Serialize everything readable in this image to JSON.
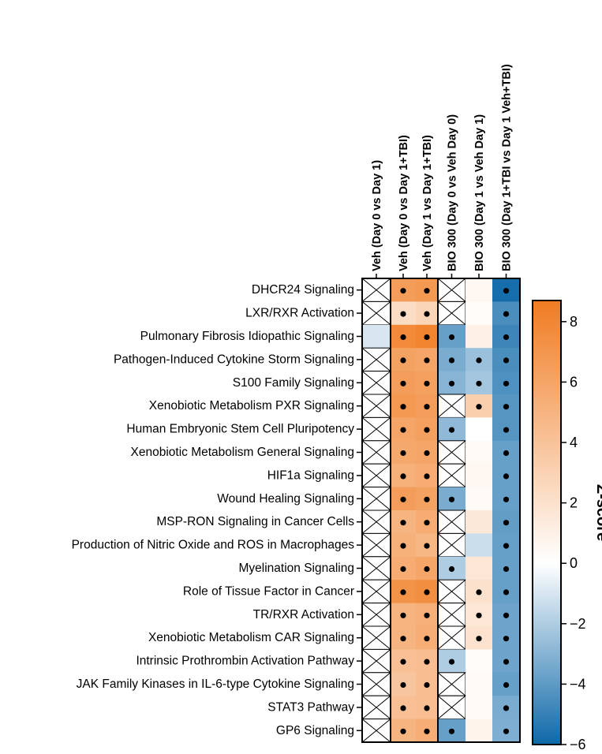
{
  "chart_data": {
    "type": "heatmap",
    "columns": [
      "Veh (Day 0 vs Day 1)",
      "Veh (Day 0 vs Day 1+TBI)",
      "Veh (Day 1 vs Day 1+TBI)",
      "BIO 300 (Day 0 vs Veh Day 0)",
      "BIO 300 (Day 1 vs Veh Day 1)",
      "BIO 300 (Day 1+TBI vs Day 1 Veh+TBI)"
    ],
    "rows": [
      "DHCR24 Signaling",
      "LXR/RXR Activation",
      "Pulmonary Fibrosis Idiopathic Signaling",
      "Pathogen-Induced Cytokine Storm Signaling",
      "S100 Family Signaling",
      "Xenobiotic Metabolism PXR Signaling",
      "Human Embryonic Stem Cell Pluripotency",
      "Xenobiotic Metabolism General Signaling",
      "HIF1a Signaling",
      "Wound Healing Signaling",
      "MSP-RON Signaling in Cancer Cells",
      "Production of Nitric Oxide and ROS in Macrophages",
      "Myelination Signaling",
      "Role of Tissue Factor in Cancer",
      "TR/RXR Activation",
      "Xenobiotic Metabolism CAR Signaling",
      "Intrinsic Prothrombin Activation Pathway",
      "JAK Family Kinases in IL-6-type Cytokine Signaling",
      "STAT3 Pathway",
      "GP6 Signaling"
    ],
    "values": [
      [
        null,
        6.5,
        6.8,
        null,
        0.5,
        -5.8
      ],
      [
        null,
        2.3,
        2.8,
        null,
        0.2,
        -4.5
      ],
      [
        -1.0,
        7.8,
        8.2,
        -3.8,
        1.0,
        -4.8
      ],
      [
        null,
        6.2,
        6.0,
        -3.3,
        -2.5,
        -4.5
      ],
      [
        null,
        6.5,
        6.3,
        -3.0,
        -2.3,
        -4.4
      ],
      [
        null,
        6.8,
        6.5,
        null,
        3.2,
        -4.2
      ],
      [
        null,
        6.0,
        6.3,
        -2.8,
        0.0,
        -4.2
      ],
      [
        null,
        5.8,
        6.0,
        null,
        0.4,
        -3.8
      ],
      [
        null,
        5.2,
        5.5,
        null,
        0.5,
        -3.8
      ],
      [
        null,
        6.5,
        6.2,
        -3.3,
        0.3,
        -3.8
      ],
      [
        null,
        5.0,
        5.5,
        null,
        1.5,
        -3.9
      ],
      [
        null,
        5.2,
        4.8,
        null,
        -1.3,
        -3.8
      ],
      [
        null,
        5.5,
        6.0,
        -2.0,
        1.6,
        -3.8
      ],
      [
        null,
        7.2,
        7.5,
        null,
        2.0,
        -3.8
      ],
      [
        null,
        5.0,
        5.3,
        null,
        1.6,
        -3.6
      ],
      [
        null,
        5.0,
        5.4,
        null,
        1.9,
        -3.6
      ],
      [
        null,
        4.2,
        4.3,
        -2.0,
        0.2,
        -3.6
      ],
      [
        null,
        3.8,
        4.3,
        null,
        0.3,
        -3.8
      ],
      [
        null,
        4.2,
        4.3,
        null,
        0.3,
        -3.3
      ],
      [
        null,
        5.0,
        5.4,
        -3.8,
        0.8,
        -3.2
      ]
    ],
    "significant": [
      [
        false,
        true,
        true,
        false,
        false,
        true
      ],
      [
        false,
        true,
        true,
        false,
        false,
        true
      ],
      [
        false,
        true,
        true,
        true,
        false,
        true
      ],
      [
        false,
        true,
        true,
        true,
        true,
        true
      ],
      [
        false,
        true,
        true,
        true,
        true,
        true
      ],
      [
        false,
        true,
        true,
        false,
        true,
        true
      ],
      [
        false,
        true,
        true,
        true,
        false,
        true
      ],
      [
        false,
        true,
        true,
        false,
        false,
        true
      ],
      [
        false,
        true,
        true,
        false,
        false,
        true
      ],
      [
        false,
        true,
        true,
        true,
        false,
        true
      ],
      [
        false,
        true,
        true,
        false,
        false,
        true
      ],
      [
        false,
        true,
        true,
        false,
        false,
        true
      ],
      [
        false,
        true,
        true,
        true,
        false,
        true
      ],
      [
        false,
        true,
        true,
        false,
        true,
        true
      ],
      [
        false,
        true,
        true,
        false,
        true,
        true
      ],
      [
        false,
        true,
        true,
        false,
        true,
        true
      ],
      [
        false,
        true,
        true,
        true,
        false,
        true
      ],
      [
        false,
        true,
        true,
        false,
        false,
        true
      ],
      [
        false,
        true,
        true,
        false,
        false,
        true
      ],
      [
        false,
        true,
        true,
        true,
        false,
        true
      ]
    ],
    "colorbar": {
      "title": "Z-score",
      "min": -6,
      "max": 8.7,
      "ticks": [
        {
          "value": 8,
          "label": "8"
        },
        {
          "value": 6,
          "label": "6"
        },
        {
          "value": 4,
          "label": "4"
        },
        {
          "value": 2,
          "label": "2"
        },
        {
          "value": 0,
          "label": "0"
        },
        {
          "value": -2,
          "label": "−2"
        },
        {
          "value": -4,
          "label": "−4"
        },
        {
          "value": -6,
          "label": "−6"
        }
      ],
      "colors": {
        "negative_end": "#0e68a8",
        "zero": "#ffffff",
        "positive_end": "#f07c22"
      }
    },
    "missing_marker": "cross",
    "significance_marker": "dot"
  }
}
